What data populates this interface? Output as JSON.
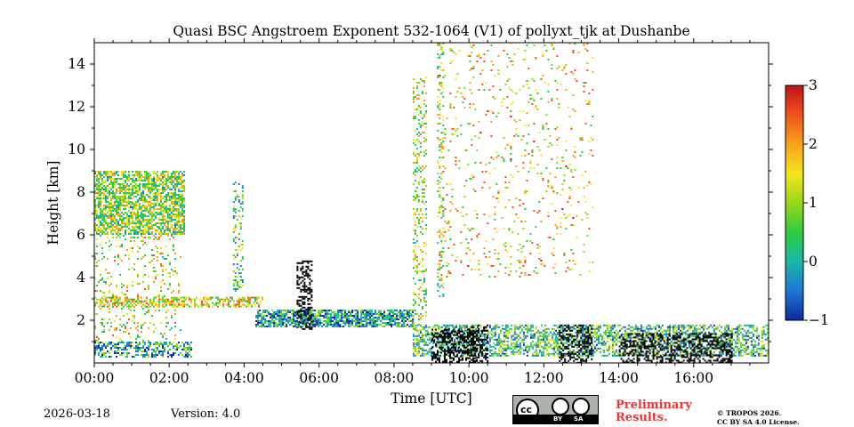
{
  "chart_data": {
    "type": "heatmap",
    "title": "Quasi BSC Angstroem Exponent 532-1064 (V1) of pollyxt_tjk at Dushanbe",
    "xlabel": "Time [UTC]",
    "ylabel": "Height [km]",
    "xlim_hours": [
      0,
      18
    ],
    "ylim_km": [
      0,
      15
    ],
    "x_ticks": [
      {
        "hour": 0,
        "label": "00:00"
      },
      {
        "hour": 2,
        "label": "02:00"
      },
      {
        "hour": 4,
        "label": "04:00"
      },
      {
        "hour": 6,
        "label": "06:00"
      },
      {
        "hour": 8,
        "label": "08:00"
      },
      {
        "hour": 10,
        "label": "10:00"
      },
      {
        "hour": 12,
        "label": "12:00"
      },
      {
        "hour": 14,
        "label": "14:00"
      },
      {
        "hour": 16,
        "label": "16:00"
      }
    ],
    "y_ticks": [
      {
        "km": 2,
        "label": "2"
      },
      {
        "km": 4,
        "label": "4"
      },
      {
        "km": 6,
        "label": "6"
      },
      {
        "km": 8,
        "label": "8"
      },
      {
        "km": 10,
        "label": "10"
      },
      {
        "km": 12,
        "label": "12"
      },
      {
        "km": 14,
        "label": "14"
      }
    ],
    "colorbar": {
      "min": -1,
      "max": 3,
      "ticks": [
        {
          "value": 3,
          "label": "3"
        },
        {
          "value": 2,
          "label": "2"
        },
        {
          "value": 1,
          "label": "1"
        },
        {
          "value": 0,
          "label": "0"
        },
        {
          "value": -1,
          "label": "−1"
        }
      ],
      "colormap": [
        "#0c2a9a",
        "#1f77d4",
        "#17b8a8",
        "#2ecc40",
        "#9ad61a",
        "#f5e51b",
        "#f7a21b",
        "#f0531c",
        "#c0111a"
      ]
    },
    "regions": [
      {
        "name": "aerosol-layer-early",
        "t0": 0.0,
        "t1": 2.4,
        "h0": 6.0,
        "h1": 9.0,
        "value": 0.9,
        "density": 0.7
      },
      {
        "name": "residual-layer",
        "t0": 0.0,
        "t1": 4.5,
        "h0": 2.6,
        "h1": 3.1,
        "value": 1.4,
        "density": 0.5
      },
      {
        "name": "sparse-lower-early",
        "t0": 0.0,
        "t1": 2.3,
        "h0": 0.8,
        "h1": 6.0,
        "value": 1.2,
        "density": 0.12
      },
      {
        "name": "boundary-layer-mid",
        "t0": 4.3,
        "t1": 8.5,
        "h0": 1.7,
        "h1": 2.5,
        "value": 0.0,
        "density": 0.75
      },
      {
        "name": "cirrus-scatter",
        "t0": 9.2,
        "t1": 13.3,
        "h0": 4.0,
        "h1": 15.0,
        "value": 1.5,
        "density": 0.06
      },
      {
        "name": "boundary-layer-late",
        "t0": 8.5,
        "t1": 18.0,
        "h0": 0.3,
        "h1": 1.8,
        "value": 0.4,
        "density": 0.55
      },
      {
        "name": "near-ground",
        "t0": 0.0,
        "t1": 2.6,
        "h0": 0.3,
        "h1": 1.0,
        "value": 0.1,
        "density": 0.5
      },
      {
        "name": "plume-0355",
        "t0": 3.7,
        "t1": 3.95,
        "h0": 3.2,
        "h1": 8.5,
        "value": 0.6,
        "density": 0.3
      },
      {
        "name": "plume-0840",
        "t0": 8.5,
        "t1": 8.85,
        "h0": 0.5,
        "h1": 13.5,
        "value": 1.0,
        "density": 0.25
      },
      {
        "name": "plume-0910",
        "t0": 9.15,
        "t1": 9.3,
        "h0": 3.0,
        "h1": 15.0,
        "value": 1.0,
        "density": 0.25
      }
    ],
    "opaque_regions": [
      {
        "name": "cloud-0540",
        "t0": 5.4,
        "t1": 5.8,
        "h0": 1.6,
        "h1": 4.8
      },
      {
        "name": "cloud-0900",
        "t0": 9.0,
        "t1": 10.2,
        "h0": 0.0,
        "h1": 1.6
      },
      {
        "name": "cloud-1000",
        "t0": 10.0,
        "t1": 10.5,
        "h0": 0.0,
        "h1": 1.8
      },
      {
        "name": "cloud-1240",
        "t0": 12.4,
        "t1": 13.3,
        "h0": 0.0,
        "h1": 1.8
      },
      {
        "name": "cloud-1400",
        "t0": 14.0,
        "t1": 17.0,
        "h0": 0.0,
        "h1": 1.4
      }
    ]
  },
  "footer": {
    "date": "2026-03-18",
    "version": "Version: 4.0",
    "preliminary_line1": "Preliminary",
    "preliminary_line2": "Results.",
    "copyright_line1": "© TROPOS 2026.",
    "copyright_line2": "CC BY SA 4.0 License.",
    "license_badge": {
      "cc": "cc",
      "by": "BY",
      "sa": "SA"
    }
  }
}
